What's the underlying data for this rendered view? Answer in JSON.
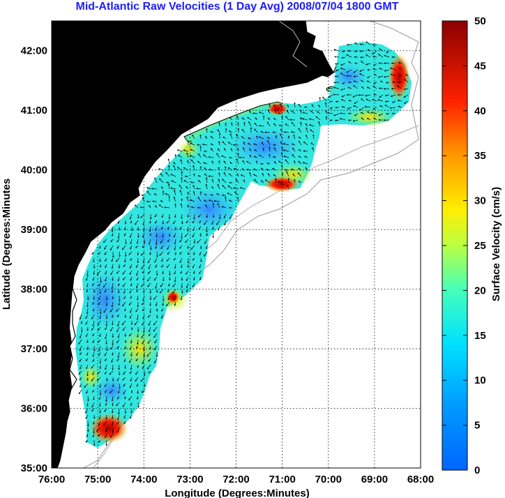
{
  "title": "Mid-Atlantic Raw Velocities (1 Day Avg) 2008/07/04 1800 GMT",
  "map": {
    "xlabel": "Longitude (Degrees:Minutes)",
    "ylabel": "Latitude (Degrees:Minutes",
    "x_ticks": [
      "76:00",
      "75:00",
      "74:00",
      "73:00",
      "72:00",
      "71:00",
      "70:00",
      "69:00",
      "68:00"
    ],
    "y_ticks": [
      "42:00",
      "41:00",
      "40:00",
      "39:00",
      "38:00",
      "37:00",
      "36:00",
      "35:00"
    ],
    "lon_range": [
      -76,
      -68
    ],
    "lat_range": [
      35,
      42.5
    ],
    "land_color": "#55eeaa",
    "grid": "dotted"
  },
  "colorbar": {
    "label": "Surface Velocity (cm/s)",
    "ticks": [
      "50",
      "45",
      "40",
      "35",
      "30",
      "25",
      "20",
      "15",
      "10",
      "5",
      "0"
    ],
    "range": [
      0,
      50
    ],
    "colormap": [
      "#0066ff",
      "#00c8ff",
      "#33ffcc",
      "#ccff33",
      "#ffdd00",
      "#ff8800",
      "#ff1100",
      "#990000"
    ]
  }
}
